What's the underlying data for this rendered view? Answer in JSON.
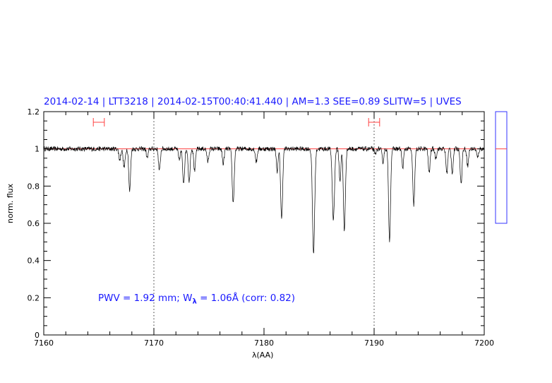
{
  "title": "2014-02-14 | LTT3218 | 2014-02-15T00:40:41.440 | AM=1.3  SEE=0.89  SLITW=5 | UVES",
  "annotation": {
    "prefix": "PWV = 1.92 mm; W",
    "sub": "λ",
    "suffix": " = 1.06Å (corr: 0.82)"
  },
  "colors": {
    "title": "#1a1aff",
    "continuum": "#ff4040",
    "spectrum": "#000000",
    "side_box": "#3333ff",
    "marker": "#ff4040"
  },
  "chart_data": {
    "type": "line",
    "xlabel": "λ(AA)",
    "ylabel": "norm. flux",
    "xlim": [
      7160,
      7200
    ],
    "ylim": [
      0,
      1.2
    ],
    "x_ticks": [
      "7160",
      "7170",
      "7180",
      "7190",
      "7200"
    ],
    "y_ticks": [
      "0",
      "0.2",
      "0.4",
      "0.6",
      "0.8",
      "1",
      "1.2"
    ],
    "vertical_dotted_lines": [
      7170,
      7190
    ],
    "continuum_level": 1.0,
    "range_markers": [
      [
        7164.5,
        7165.5
      ],
      [
        7189.5,
        7190.5
      ]
    ],
    "side_panel": {
      "ylim": [
        0.6,
        1.2
      ],
      "value": 1.0
    },
    "absorption_lines": [
      {
        "x": 7166.9,
        "depth": 0.06,
        "width": 0.08
      },
      {
        "x": 7167.3,
        "depth": 0.1,
        "width": 0.09
      },
      {
        "x": 7167.8,
        "depth": 0.23,
        "width": 0.08
      },
      {
        "x": 7169.4,
        "depth": 0.05,
        "width": 0.08
      },
      {
        "x": 7170.5,
        "depth": 0.12,
        "width": 0.08
      },
      {
        "x": 7172.3,
        "depth": 0.06,
        "width": 0.08
      },
      {
        "x": 7172.7,
        "depth": 0.18,
        "width": 0.09
      },
      {
        "x": 7173.2,
        "depth": 0.18,
        "width": 0.08
      },
      {
        "x": 7173.7,
        "depth": 0.12,
        "width": 0.08
      },
      {
        "x": 7174.9,
        "depth": 0.07,
        "width": 0.08
      },
      {
        "x": 7176.3,
        "depth": 0.08,
        "width": 0.08
      },
      {
        "x": 7177.2,
        "depth": 0.29,
        "width": 0.09
      },
      {
        "x": 7179.3,
        "depth": 0.07,
        "width": 0.08
      },
      {
        "x": 7181.2,
        "depth": 0.12,
        "width": 0.08
      },
      {
        "x": 7181.6,
        "depth": 0.38,
        "width": 0.09
      },
      {
        "x": 7184.5,
        "depth": 0.56,
        "width": 0.1
      },
      {
        "x": 7186.3,
        "depth": 0.38,
        "width": 0.1
      },
      {
        "x": 7186.9,
        "depth": 0.17,
        "width": 0.08
      },
      {
        "x": 7187.3,
        "depth": 0.44,
        "width": 0.09
      },
      {
        "x": 7190.1,
        "depth": 0.03,
        "width": 0.08
      },
      {
        "x": 7190.8,
        "depth": 0.07,
        "width": 0.08
      },
      {
        "x": 7191.4,
        "depth": 0.49,
        "width": 0.09
      },
      {
        "x": 7192.6,
        "depth": 0.1,
        "width": 0.08
      },
      {
        "x": 7193.6,
        "depth": 0.3,
        "width": 0.09
      },
      {
        "x": 7195.0,
        "depth": 0.13,
        "width": 0.08
      },
      {
        "x": 7195.6,
        "depth": 0.05,
        "width": 0.08
      },
      {
        "x": 7196.6,
        "depth": 0.13,
        "width": 0.08
      },
      {
        "x": 7197.1,
        "depth": 0.13,
        "width": 0.08
      },
      {
        "x": 7197.9,
        "depth": 0.19,
        "width": 0.08
      },
      {
        "x": 7198.5,
        "depth": 0.09,
        "width": 0.08
      },
      {
        "x": 7199.4,
        "depth": 0.05,
        "width": 0.08
      }
    ]
  }
}
